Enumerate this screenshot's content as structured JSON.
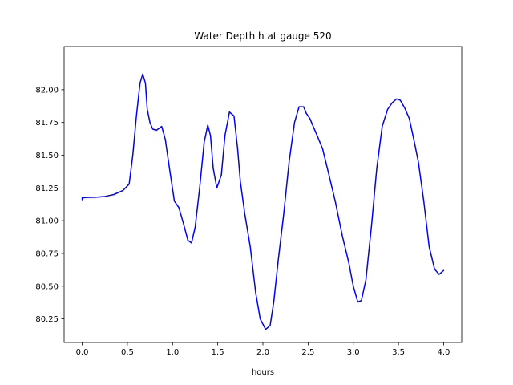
{
  "chart_data": {
    "type": "line",
    "title": "Water Depth h at gauge 520",
    "xlabel": "hours",
    "ylabel": "",
    "xlim": [
      -0.2,
      4.2
    ],
    "ylim": [
      80.07,
      82.33
    ],
    "xticks": [
      0.0,
      0.5,
      1.0,
      1.5,
      2.0,
      2.5,
      3.0,
      3.5,
      4.0
    ],
    "xtick_labels": [
      "0.0",
      "0.5",
      "1.0",
      "1.5",
      "2.0",
      "2.5",
      "3.0",
      "3.5",
      "4.0"
    ],
    "yticks": [
      80.25,
      80.5,
      80.75,
      81.0,
      81.25,
      81.5,
      81.75,
      82.0
    ],
    "ytick_labels": [
      "80.25",
      "80.50",
      "80.75",
      "81.00",
      "81.25",
      "81.50",
      "81.75",
      "82.00"
    ],
    "grid": false,
    "series": [
      {
        "color": "#0000ff",
        "x": [
          0.0,
          0.0,
          0.05,
          0.15,
          0.25,
          0.35,
          0.45,
          0.52,
          0.56,
          0.6,
          0.64,
          0.67,
          0.7,
          0.72,
          0.75,
          0.78,
          0.82,
          0.88,
          0.92,
          0.97,
          1.02,
          1.07,
          1.12,
          1.17,
          1.21,
          1.25,
          1.3,
          1.35,
          1.39,
          1.42,
          1.45,
          1.49,
          1.54,
          1.58,
          1.63,
          1.68,
          1.72,
          1.75,
          1.8,
          1.86,
          1.92,
          1.97,
          2.03,
          2.08,
          2.12,
          2.17,
          2.23,
          2.29,
          2.35,
          2.4,
          2.45,
          2.48,
          2.52,
          2.55,
          2.6,
          2.66,
          2.72,
          2.8,
          2.88,
          2.95,
          3.0,
          3.05,
          3.09,
          3.14,
          3.2,
          3.26,
          3.32,
          3.38,
          3.43,
          3.48,
          3.52,
          3.57,
          3.62,
          3.67,
          3.72,
          3.78,
          3.84,
          3.9,
          3.95,
          4.0
        ],
        "y": [
          81.16,
          81.175,
          81.178,
          81.179,
          81.185,
          81.2,
          81.23,
          81.28,
          81.5,
          81.8,
          82.05,
          82.12,
          82.05,
          81.85,
          81.75,
          81.7,
          81.69,
          81.72,
          81.62,
          81.38,
          81.15,
          81.1,
          80.98,
          80.85,
          80.83,
          80.95,
          81.25,
          81.6,
          81.73,
          81.65,
          81.4,
          81.25,
          81.35,
          81.65,
          81.83,
          81.8,
          81.55,
          81.3,
          81.05,
          80.8,
          80.45,
          80.25,
          80.17,
          80.2,
          80.38,
          80.7,
          81.05,
          81.45,
          81.75,
          81.87,
          81.87,
          81.82,
          81.78,
          81.73,
          81.65,
          81.55,
          81.38,
          81.15,
          80.88,
          80.68,
          80.5,
          80.38,
          80.39,
          80.55,
          80.95,
          81.4,
          81.72,
          81.85,
          81.9,
          81.93,
          81.92,
          81.86,
          81.78,
          81.62,
          81.45,
          81.15,
          80.8,
          80.63,
          80.59,
          80.62
        ]
      }
    ]
  }
}
